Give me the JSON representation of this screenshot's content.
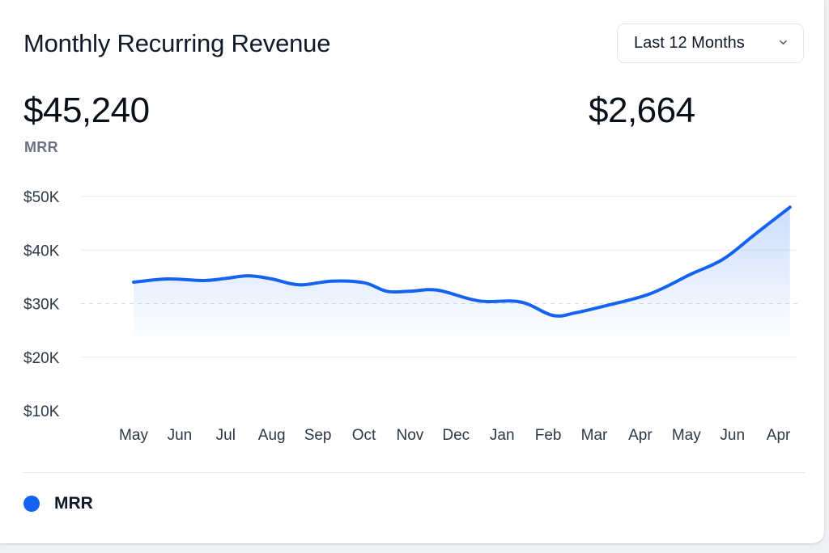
{
  "header": {
    "title": "Monthly Recurring Revenue",
    "range_selector": {
      "selected": "Last 12 Months",
      "icon": "chevron-down-icon"
    }
  },
  "metrics": {
    "primary": {
      "value": "$45,240",
      "label": "MRR"
    },
    "secondary": {
      "value": "$2,664"
    }
  },
  "legend": {
    "items": [
      {
        "name": "MRR",
        "color": "#1463f0"
      }
    ]
  },
  "chart_data": {
    "type": "area",
    "title": "Monthly Recurring Revenue",
    "xlabel": "",
    "ylabel": "",
    "categories": [
      "May",
      "Jun",
      "Jul",
      "Aug",
      "Sep",
      "Oct",
      "Nov",
      "Dec",
      "Jan",
      "Feb",
      "Mar",
      "Apr",
      "May",
      "Jun",
      "Apr"
    ],
    "y_ticks": [
      "$10K",
      "$20K",
      "$30K",
      "$40K",
      "$50K"
    ],
    "ylim": [
      10000,
      50000
    ],
    "grid": true,
    "reference_line": 30000,
    "legend_position": "bottom-left",
    "series": [
      {
        "name": "MRR",
        "color": "#1463f0",
        "x": [
          0,
          0.75,
          1.5,
          2,
          2.5,
          3,
          3.6,
          4.3,
          5,
          5.5,
          6,
          6.6,
          7.5,
          8.4,
          9.1,
          9.6,
          10.2,
          11.2,
          12.1,
          12.8,
          13.5,
          14.25
        ],
        "values": [
          34000,
          34600,
          34300,
          34700,
          35200,
          34600,
          33500,
          34200,
          33900,
          32300,
          32300,
          32500,
          30500,
          30300,
          27800,
          28300,
          29500,
          31800,
          35500,
          38300,
          43000,
          48000
        ]
      }
    ]
  }
}
